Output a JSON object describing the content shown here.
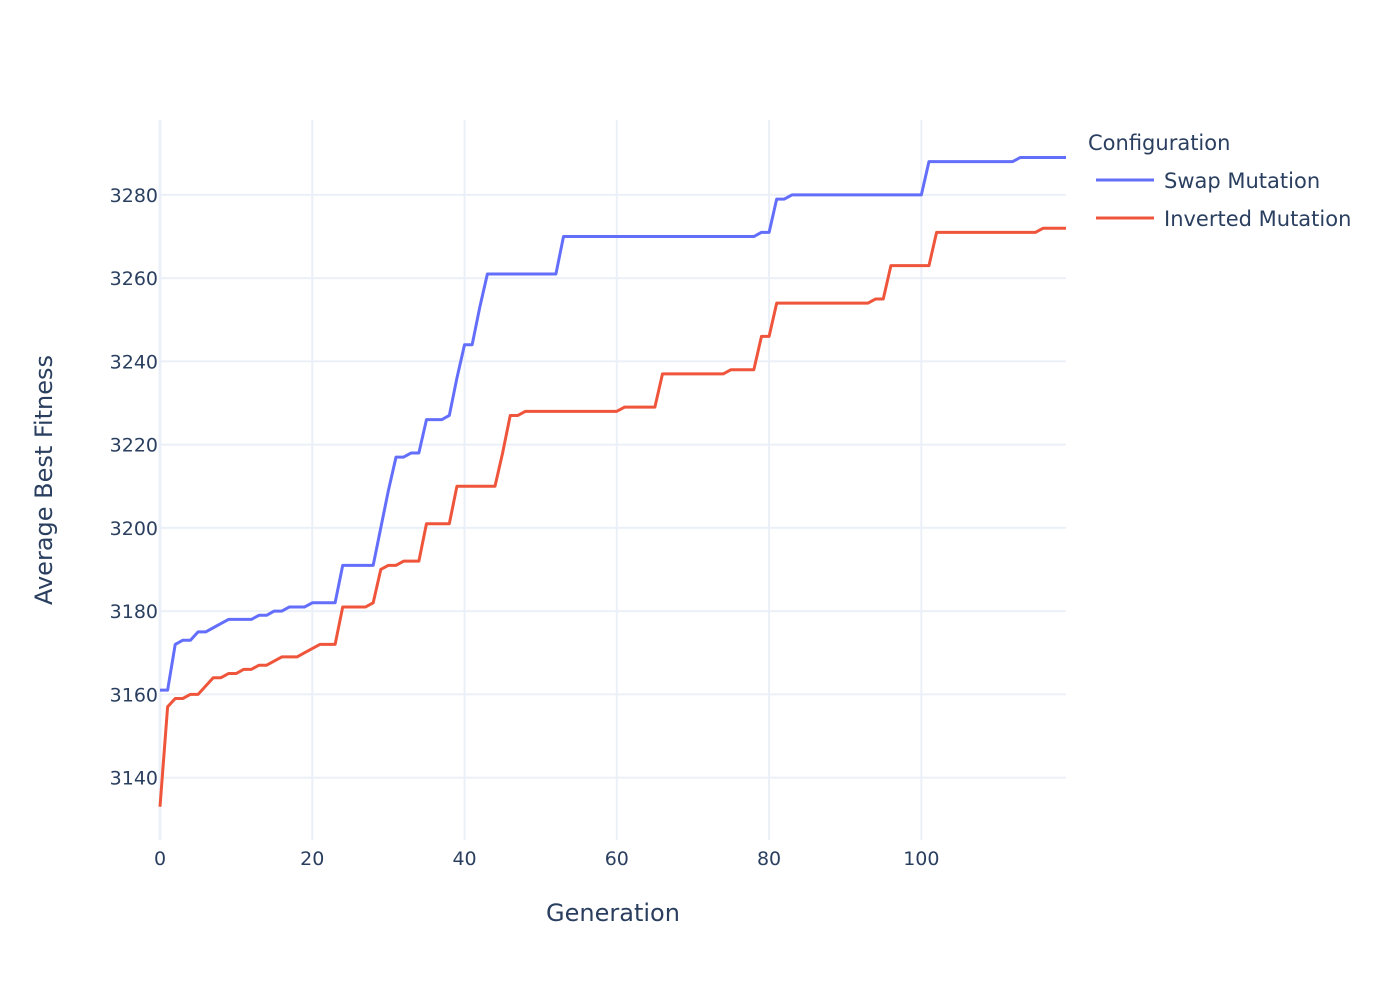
{
  "chart_data": {
    "type": "line",
    "title": "",
    "xlabel": "Generation",
    "ylabel": "Average Best Fitness",
    "xlim": [
      0,
      119
    ],
    "ylim": [
      3125,
      3298
    ],
    "x_ticks": [
      0,
      20,
      40,
      60,
      80,
      100
    ],
    "y_ticks": [
      3140,
      3160,
      3180,
      3200,
      3220,
      3240,
      3260,
      3280
    ],
    "grid": true,
    "legend": {
      "title": "Configuration",
      "placement": "top-right outside"
    },
    "series": [
      {
        "name": "Swap Mutation",
        "color": "#636efa",
        "x": [
          0,
          1,
          2,
          3,
          4,
          5,
          6,
          7,
          8,
          9,
          10,
          11,
          12,
          13,
          14,
          15,
          16,
          17,
          18,
          19,
          20,
          21,
          22,
          23,
          24,
          25,
          26,
          27,
          28,
          29,
          30,
          31,
          32,
          33,
          34,
          35,
          36,
          37,
          38,
          39,
          40,
          41,
          42,
          43,
          44,
          45,
          46,
          47,
          48,
          49,
          50,
          51,
          52,
          53,
          54,
          55,
          56,
          57,
          58,
          59,
          60,
          61,
          62,
          63,
          64,
          65,
          66,
          67,
          68,
          69,
          70,
          71,
          72,
          73,
          74,
          75,
          76,
          77,
          78,
          79,
          80,
          81,
          82,
          83,
          84,
          85,
          86,
          87,
          88,
          89,
          90,
          91,
          92,
          93,
          94,
          95,
          96,
          97,
          98,
          99,
          100,
          101,
          102,
          103,
          104,
          105,
          106,
          107,
          108,
          109,
          110,
          111,
          112,
          113,
          114,
          115,
          116,
          117,
          118,
          119
        ],
        "values": [
          3161,
          3161,
          3172,
          3173,
          3173,
          3175,
          3175,
          3176,
          3177,
          3178,
          3178,
          3178,
          3178,
          3179,
          3179,
          3180,
          3180,
          3181,
          3181,
          3181,
          3182,
          3182,
          3182,
          3182,
          3191,
          3191,
          3191,
          3191,
          3191,
          3200,
          3209,
          3217,
          3217,
          3218,
          3218,
          3226,
          3226,
          3226,
          3227,
          3236,
          3244,
          3244,
          3253,
          3261,
          3261,
          3261,
          3261,
          3261,
          3261,
          3261,
          3261,
          3261,
          3261,
          3270,
          3270,
          3270,
          3270,
          3270,
          3270,
          3270,
          3270,
          3270,
          3270,
          3270,
          3270,
          3270,
          3270,
          3270,
          3270,
          3270,
          3270,
          3270,
          3270,
          3270,
          3270,
          3270,
          3270,
          3270,
          3270,
          3271,
          3271,
          3279,
          3279,
          3280,
          3280,
          3280,
          3280,
          3280,
          3280,
          3280,
          3280,
          3280,
          3280,
          3280,
          3280,
          3280,
          3280,
          3280,
          3280,
          3280,
          3280,
          3288,
          3288,
          3288,
          3288,
          3288,
          3288,
          3288,
          3288,
          3288,
          3288,
          3288,
          3288,
          3289,
          3289,
          3289,
          3289,
          3289,
          3289,
          3289
        ]
      },
      {
        "name": "Inverted Mutation",
        "color": "#ef553b",
        "x": [
          0,
          1,
          2,
          3,
          4,
          5,
          6,
          7,
          8,
          9,
          10,
          11,
          12,
          13,
          14,
          15,
          16,
          17,
          18,
          19,
          20,
          21,
          22,
          23,
          24,
          25,
          26,
          27,
          28,
          29,
          30,
          31,
          32,
          33,
          34,
          35,
          36,
          37,
          38,
          39,
          40,
          41,
          42,
          43,
          44,
          45,
          46,
          47,
          48,
          49,
          50,
          51,
          52,
          53,
          54,
          55,
          56,
          57,
          58,
          59,
          60,
          61,
          62,
          63,
          64,
          65,
          66,
          67,
          68,
          69,
          70,
          71,
          72,
          73,
          74,
          75,
          76,
          77,
          78,
          79,
          80,
          81,
          82,
          83,
          84,
          85,
          86,
          87,
          88,
          89,
          90,
          91,
          92,
          93,
          94,
          95,
          96,
          97,
          98,
          99,
          100,
          101,
          102,
          103,
          104,
          105,
          106,
          107,
          108,
          109,
          110,
          111,
          112,
          113,
          114,
          115,
          116,
          117,
          118,
          119
        ],
        "values": [
          3133,
          3157,
          3159,
          3159,
          3160,
          3160,
          3162,
          3164,
          3164,
          3165,
          3165,
          3166,
          3166,
          3167,
          3167,
          3168,
          3169,
          3169,
          3169,
          3170,
          3171,
          3172,
          3172,
          3172,
          3181,
          3181,
          3181,
          3181,
          3182,
          3190,
          3191,
          3191,
          3192,
          3192,
          3192,
          3201,
          3201,
          3201,
          3201,
          3210,
          3210,
          3210,
          3210,
          3210,
          3210,
          3218,
          3227,
          3227,
          3228,
          3228,
          3228,
          3228,
          3228,
          3228,
          3228,
          3228,
          3228,
          3228,
          3228,
          3228,
          3228,
          3229,
          3229,
          3229,
          3229,
          3229,
          3237,
          3237,
          3237,
          3237,
          3237,
          3237,
          3237,
          3237,
          3237,
          3238,
          3238,
          3238,
          3238,
          3246,
          3246,
          3254,
          3254,
          3254,
          3254,
          3254,
          3254,
          3254,
          3254,
          3254,
          3254,
          3254,
          3254,
          3254,
          3255,
          3255,
          3263,
          3263,
          3263,
          3263,
          3263,
          3263,
          3271,
          3271,
          3271,
          3271,
          3271,
          3271,
          3271,
          3271,
          3271,
          3271,
          3271,
          3271,
          3271,
          3271,
          3272,
          3272,
          3272,
          3272
        ]
      }
    ]
  }
}
